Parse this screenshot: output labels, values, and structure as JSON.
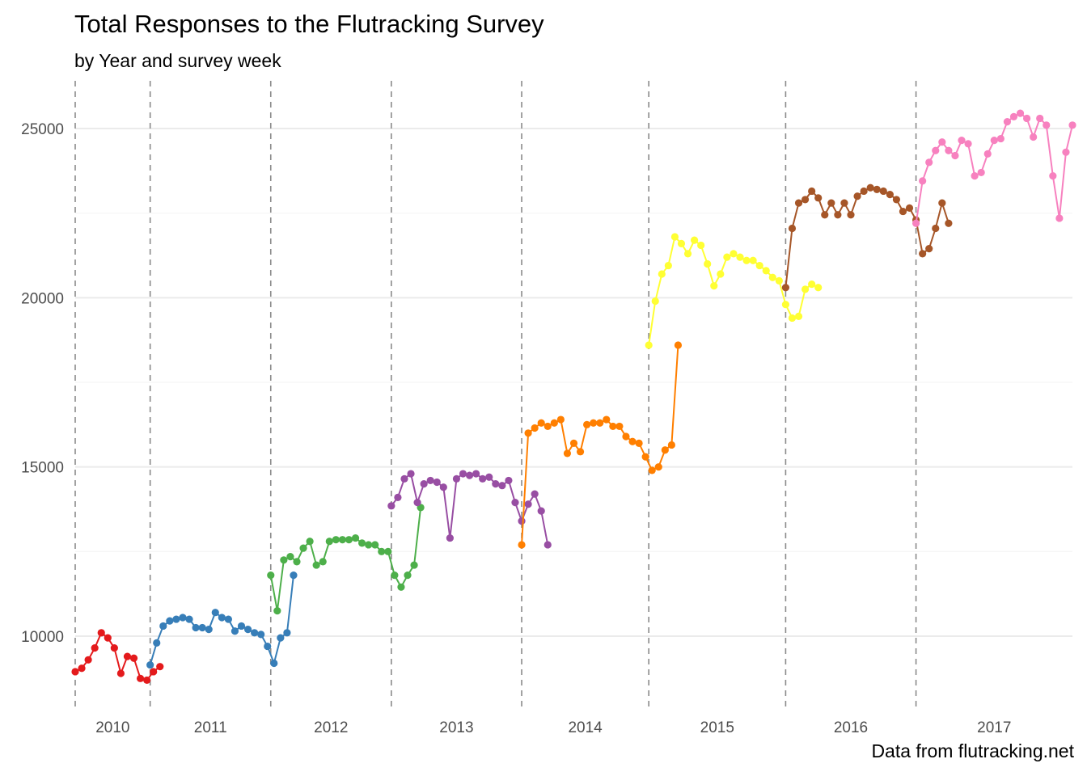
{
  "title": "Total Responses to the Flutracking Survey",
  "subtitle": "by Year and survey week",
  "caption": "Data from flutracking.net",
  "chart_data": {
    "type": "line",
    "xlabel": "",
    "ylabel": "",
    "ylim": [
      8000,
      26500
    ],
    "y_ticks": [
      10000,
      15000,
      20000,
      25000
    ],
    "grid": "horizontal major and minor",
    "year_labels": [
      "2010",
      "2011",
      "2012",
      "2013",
      "2014",
      "2015",
      "2016",
      "2017"
    ],
    "year_boundaries": [
      0,
      11.5,
      30,
      48.5,
      68.5,
      88,
      109,
      129
    ],
    "series": [
      {
        "color": "#e41a1c",
        "start": 0,
        "values": [
          8950,
          9050,
          9300,
          9650,
          10100,
          9950,
          9650,
          8900,
          9400,
          9350,
          8750,
          8700,
          8950,
          9100
        ]
      },
      {
        "color": "#377eb8",
        "start": 11.5,
        "values": [
          9150,
          9800,
          10300,
          10450,
          10500,
          10550,
          10500,
          10250,
          10250,
          10200,
          10700,
          10550,
          10500,
          10150,
          10300,
          10200,
          10100,
          10050,
          9700,
          9200,
          9950,
          10100,
          11800
        ]
      },
      {
        "color": "#4daf4a",
        "start": 30,
        "values": [
          11800,
          10750,
          12250,
          12350,
          12200,
          12600,
          12800,
          12100,
          12200,
          12800,
          12850,
          12850,
          12850,
          12900,
          12750,
          12700,
          12700,
          12500,
          12500,
          11800,
          11450,
          11800,
          12100,
          13800
        ]
      },
      {
        "color": "#984ea3",
        "start": 48.5,
        "values": [
          13850,
          14100,
          14650,
          14800,
          13950,
          14500,
          14600,
          14550,
          14400,
          12900,
          14650,
          14800,
          14750,
          14800,
          14650,
          14700,
          14500,
          14450,
          14600,
          13950,
          13400,
          13900,
          14200,
          13700,
          12700
        ]
      },
      {
        "color": "#ff7f00",
        "start": 68.5,
        "values": [
          12700,
          16000,
          16150,
          16300,
          16200,
          16300,
          16400,
          15400,
          15700,
          15450,
          16250,
          16300,
          16300,
          16400,
          16200,
          16200,
          15900,
          15750,
          15700,
          15300,
          14900,
          15000,
          15500,
          15650,
          18600
        ]
      },
      {
        "color": "#ffff33",
        "start": 88,
        "values": [
          18600,
          19900,
          20700,
          20950,
          21800,
          21600,
          21300,
          21700,
          21550,
          21000,
          20350,
          20700,
          21200,
          21300,
          21200,
          21100,
          21100,
          20950,
          20800,
          20600,
          20500,
          19800,
          19400,
          19450,
          20250,
          20400,
          20300
        ]
      },
      {
        "color": "#a65628",
        "start": 109,
        "values": [
          20300,
          22050,
          22800,
          22900,
          23150,
          22950,
          22450,
          22800,
          22450,
          22800,
          22450,
          23000,
          23150,
          23250,
          23200,
          23150,
          23050,
          22900,
          22550,
          22650,
          22300,
          21300,
          21450,
          22050,
          22800,
          22200
        ]
      },
      {
        "color": "#f781bf",
        "start": 129,
        "values": [
          22200,
          23450,
          24000,
          24350,
          24600,
          24350,
          24200,
          24650,
          24550,
          23600,
          23700,
          24250,
          24650,
          24700,
          25200,
          25350,
          25450,
          25300,
          24750,
          25300,
          25100,
          23600,
          22350,
          24300,
          25100
        ]
      }
    ]
  }
}
